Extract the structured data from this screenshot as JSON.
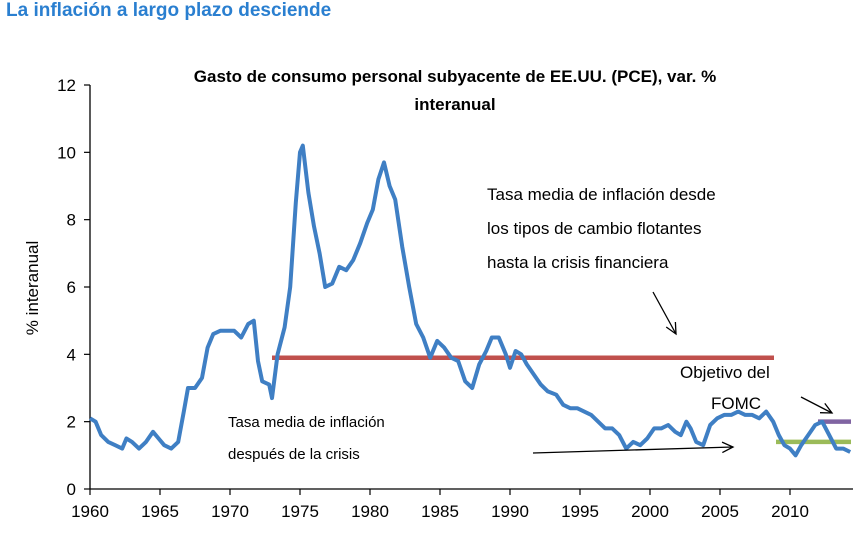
{
  "heading": "La inflación a largo plazo desciende",
  "chart_data": {
    "type": "line",
    "title_line1": "Gasto de consumo personal subyacente de EE.UU. (PCE), var. %",
    "title_line2": "interanual",
    "xlabel": "",
    "ylabel": "% interanual",
    "xlim": [
      1960,
      2014.5
    ],
    "ylim": [
      0,
      12
    ],
    "x_ticks": [
      "1960",
      "1965",
      "1970",
      "1975",
      "1980",
      "1985",
      "1990",
      "1995",
      "2000",
      "2005",
      "2010"
    ],
    "y_ticks": [
      "0",
      "2",
      "4",
      "6",
      "8",
      "10",
      "12"
    ],
    "grid": false,
    "series": [
      {
        "color": "#3f7fc4",
        "points": [
          [
            1960.0,
            2.1
          ],
          [
            1960.4,
            2.0
          ],
          [
            1960.8,
            1.6
          ],
          [
            1961.3,
            1.4
          ],
          [
            1961.8,
            1.3
          ],
          [
            1962.3,
            1.2
          ],
          [
            1962.6,
            1.5
          ],
          [
            1963.0,
            1.4
          ],
          [
            1963.5,
            1.2
          ],
          [
            1964.0,
            1.4
          ],
          [
            1964.5,
            1.7
          ],
          [
            1964.9,
            1.5
          ],
          [
            1965.3,
            1.3
          ],
          [
            1965.8,
            1.2
          ],
          [
            1966.3,
            1.4
          ],
          [
            1966.7,
            2.3
          ],
          [
            1967.0,
            3.0
          ],
          [
            1967.5,
            3.0
          ],
          [
            1968.0,
            3.3
          ],
          [
            1968.4,
            4.2
          ],
          [
            1968.8,
            4.6
          ],
          [
            1969.3,
            4.7
          ],
          [
            1969.8,
            4.7
          ],
          [
            1970.3,
            4.7
          ],
          [
            1970.8,
            4.5
          ],
          [
            1971.3,
            4.9
          ],
          [
            1971.7,
            5.0
          ],
          [
            1972.0,
            3.8
          ],
          [
            1972.3,
            3.2
          ],
          [
            1972.8,
            3.1
          ],
          [
            1973.0,
            2.7
          ],
          [
            1973.4,
            4.0
          ],
          [
            1973.9,
            4.8
          ],
          [
            1974.3,
            6.0
          ],
          [
            1974.7,
            8.5
          ],
          [
            1975.0,
            10.0
          ],
          [
            1975.2,
            10.2
          ],
          [
            1975.6,
            8.8
          ],
          [
            1976.0,
            7.8
          ],
          [
            1976.4,
            7.0
          ],
          [
            1976.8,
            6.0
          ],
          [
            1977.3,
            6.1
          ],
          [
            1977.8,
            6.6
          ],
          [
            1978.3,
            6.5
          ],
          [
            1978.8,
            6.8
          ],
          [
            1979.3,
            7.3
          ],
          [
            1979.8,
            7.9
          ],
          [
            1980.2,
            8.3
          ],
          [
            1980.6,
            9.2
          ],
          [
            1981.0,
            9.7
          ],
          [
            1981.4,
            9.0
          ],
          [
            1981.8,
            8.6
          ],
          [
            1982.3,
            7.2
          ],
          [
            1982.8,
            6.0
          ],
          [
            1983.3,
            4.9
          ],
          [
            1983.8,
            4.5
          ],
          [
            1984.3,
            3.9
          ],
          [
            1984.8,
            4.4
          ],
          [
            1985.3,
            4.2
          ],
          [
            1985.8,
            3.9
          ],
          [
            1986.3,
            3.8
          ],
          [
            1986.8,
            3.2
          ],
          [
            1987.3,
            3.0
          ],
          [
            1987.8,
            3.7
          ],
          [
            1988.3,
            4.1
          ],
          [
            1988.7,
            4.5
          ],
          [
            1989.2,
            4.5
          ],
          [
            1989.7,
            4.0
          ],
          [
            1990.0,
            3.6
          ],
          [
            1990.4,
            4.1
          ],
          [
            1990.8,
            4.0
          ],
          [
            1991.2,
            3.7
          ],
          [
            1991.7,
            3.4
          ],
          [
            1992.2,
            3.1
          ],
          [
            1992.7,
            2.9
          ],
          [
            1993.3,
            2.8
          ],
          [
            1993.8,
            2.5
          ],
          [
            1994.3,
            2.4
          ],
          [
            1994.8,
            2.4
          ],
          [
            1995.3,
            2.3
          ],
          [
            1995.8,
            2.2
          ],
          [
            1996.3,
            2.0
          ],
          [
            1996.8,
            1.8
          ],
          [
            1997.3,
            1.8
          ],
          [
            1997.8,
            1.6
          ],
          [
            1998.3,
            1.2
          ],
          [
            1998.8,
            1.4
          ],
          [
            1999.3,
            1.3
          ],
          [
            1999.8,
            1.5
          ],
          [
            2000.3,
            1.8
          ],
          [
            2000.8,
            1.8
          ],
          [
            2001.3,
            1.9
          ],
          [
            2001.8,
            1.7
          ],
          [
            2002.2,
            1.6
          ],
          [
            2002.6,
            2.0
          ],
          [
            2002.9,
            1.8
          ],
          [
            2003.3,
            1.4
          ],
          [
            2003.8,
            1.3
          ],
          [
            2004.3,
            1.9
          ],
          [
            2004.8,
            2.1
          ],
          [
            2005.3,
            2.2
          ],
          [
            2005.8,
            2.2
          ],
          [
            2006.3,
            2.3
          ],
          [
            2006.8,
            2.2
          ],
          [
            2007.3,
            2.2
          ],
          [
            2007.8,
            2.1
          ],
          [
            2008.3,
            2.3
          ],
          [
            2008.8,
            2.0
          ],
          [
            2009.2,
            1.6
          ],
          [
            2009.6,
            1.3
          ],
          [
            2010.0,
            1.2
          ],
          [
            2010.4,
            1.0
          ],
          [
            2010.8,
            1.3
          ],
          [
            2011.3,
            1.6
          ],
          [
            2011.8,
            1.9
          ],
          [
            2012.3,
            2.0
          ],
          [
            2012.8,
            1.6
          ],
          [
            2013.3,
            1.2
          ],
          [
            2013.8,
            1.2
          ],
          [
            2014.3,
            1.1
          ]
        ]
      }
    ],
    "reference_lines": [
      {
        "label_key": "pre_crisis",
        "color": "#c0504d",
        "x_start": 1973.0,
        "x_end": 2009.0,
        "y": 3.9
      },
      {
        "label_key": "post_crisis",
        "color": "#9bbb59",
        "x_start": 2009.0,
        "x_end": 2014.5,
        "y": 1.4
      },
      {
        "label_key": "fomc",
        "color": "#8064a2",
        "x_start": 2012.0,
        "x_end": 2014.5,
        "y": 2.0
      }
    ],
    "annotations": {
      "pre_crisis": [
        "Tasa media de inflación desde",
        "los tipos de cambio flotantes",
        "hasta la crisis financiera"
      ],
      "post_crisis": [
        "Tasa media de inflación",
        "después de la crisis"
      ],
      "fomc": [
        "Objetivo del",
        "FOMC"
      ]
    }
  }
}
